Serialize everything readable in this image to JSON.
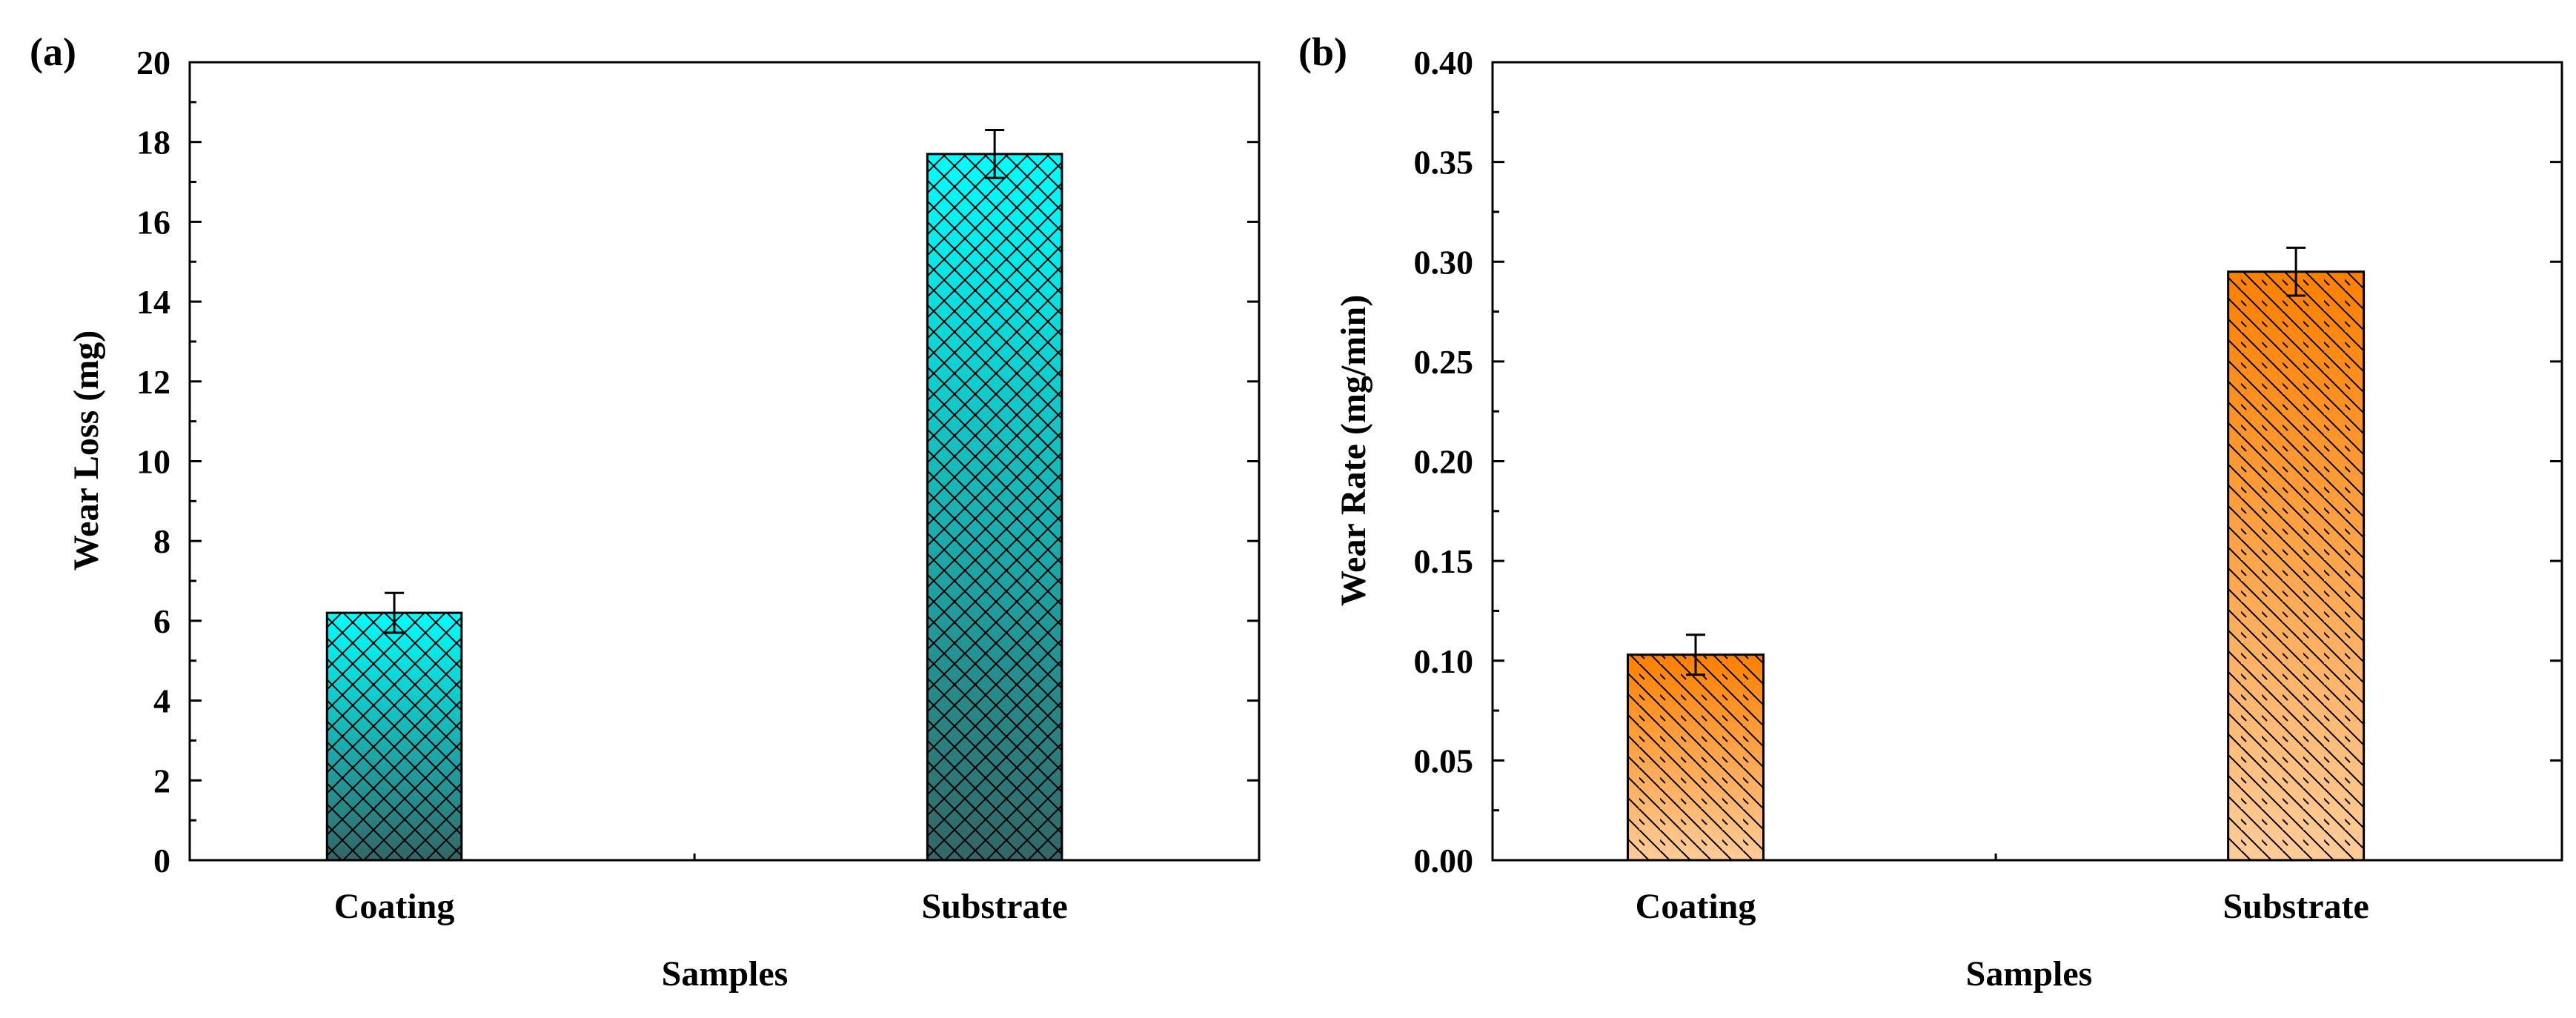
{
  "chart_data": [
    {
      "panel_label": "(a)",
      "type": "bar",
      "categories": [
        "Coating",
        "Substrate"
      ],
      "values": [
        6.2,
        17.7
      ],
      "errors": [
        0.5,
        0.6
      ],
      "title": "",
      "xlabel": "Samples",
      "ylabel": "Wear Loss (mg)",
      "ylim": [
        0,
        20
      ],
      "yticks": [
        "0",
        "2",
        "4",
        "6",
        "8",
        "10",
        "12",
        "14",
        "16",
        "18",
        "20"
      ],
      "pattern": "crosshatch",
      "fill_top_color": "#00ffff",
      "fill_bottom_color": "#336666",
      "grid": false,
      "legend": "none"
    },
    {
      "panel_label": "(b)",
      "type": "bar",
      "categories": [
        "Coating",
        "Substrate"
      ],
      "values": [
        0.103,
        0.295
      ],
      "errors": [
        0.01,
        0.012
      ],
      "title": "",
      "xlabel": "Samples",
      "ylabel": "Wear Rate (mg/min)",
      "ylim": [
        0,
        0.4
      ],
      "yticks": [
        "0.00",
        "0.05",
        "0.10",
        "0.15",
        "0.20",
        "0.25",
        "0.30",
        "0.35",
        "0.40"
      ],
      "pattern": "diagonal-hatch",
      "fill_top_color": "#ff8000",
      "fill_bottom_color": "#ffcc99",
      "grid": false,
      "legend": "none"
    }
  ]
}
